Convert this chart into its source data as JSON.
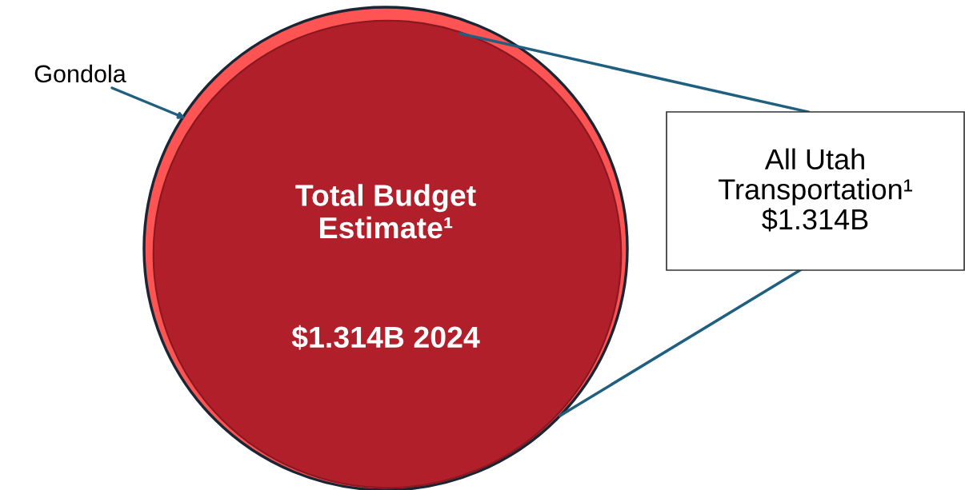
{
  "chart_data": {
    "type": "other",
    "categories": [
      "Gondola",
      "All Utah\nTransportation¹"
    ],
    "values": [
      null,
      1.314
    ],
    "value_labels": [
      null,
      "$1.314B"
    ],
    "annotations": [
      "Total Budget\nEstimate¹",
      "$1.314B 2024"
    ]
  }
}
